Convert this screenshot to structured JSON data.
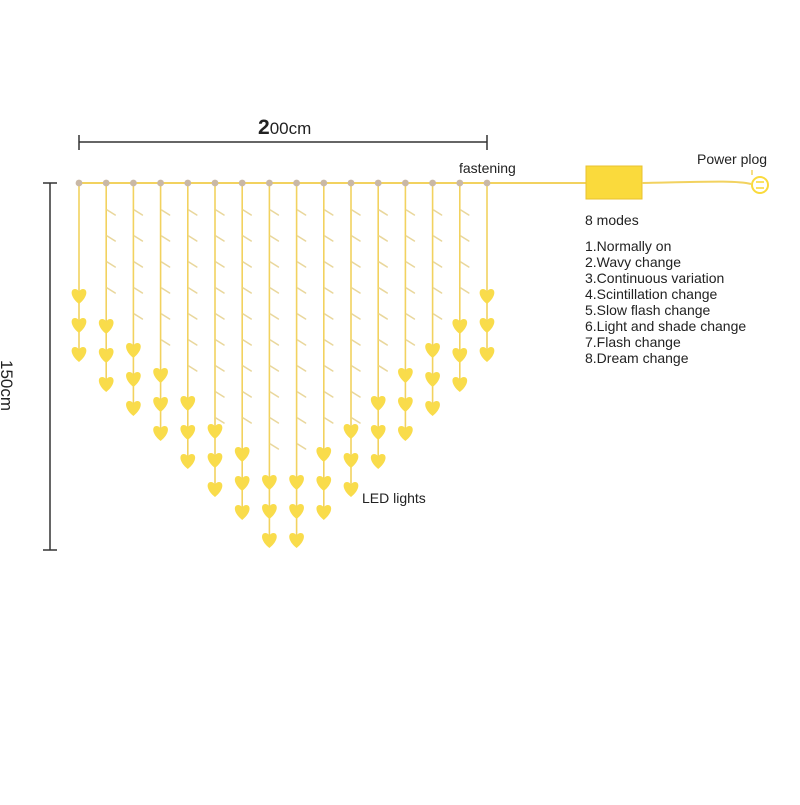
{
  "labels": {
    "width_digit": "2",
    "width_rest": "00cm",
    "height": "150cm",
    "fastening": "fastening",
    "power": "Power plog",
    "modes_title": "8 modes",
    "led": "LED lights"
  },
  "modes": [
    "1.Normally on",
    "2.Wavy change",
    "3.Continuous variation",
    "4.Scintillation change",
    "5.Slow flash change",
    "6.Light and shade change",
    "7.Flash change",
    "8.Dream change"
  ],
  "colors": {
    "wire": "#f2d25f",
    "heart": "#f9dc4b",
    "controller": "#fada3c",
    "controller_border": "#e8c230",
    "hook": "#c9b8a6",
    "dimension": "#333333",
    "leaf": "#e9d79c"
  },
  "diagram": {
    "strand_count": 16,
    "hearts_per_strand": [
      3,
      3,
      3,
      3,
      3,
      3,
      3,
      3,
      3,
      3,
      3,
      3,
      3,
      3,
      3,
      3
    ],
    "icons": [
      "heart-icon",
      "hook-icon",
      "plug-icon",
      "controller-box"
    ]
  }
}
